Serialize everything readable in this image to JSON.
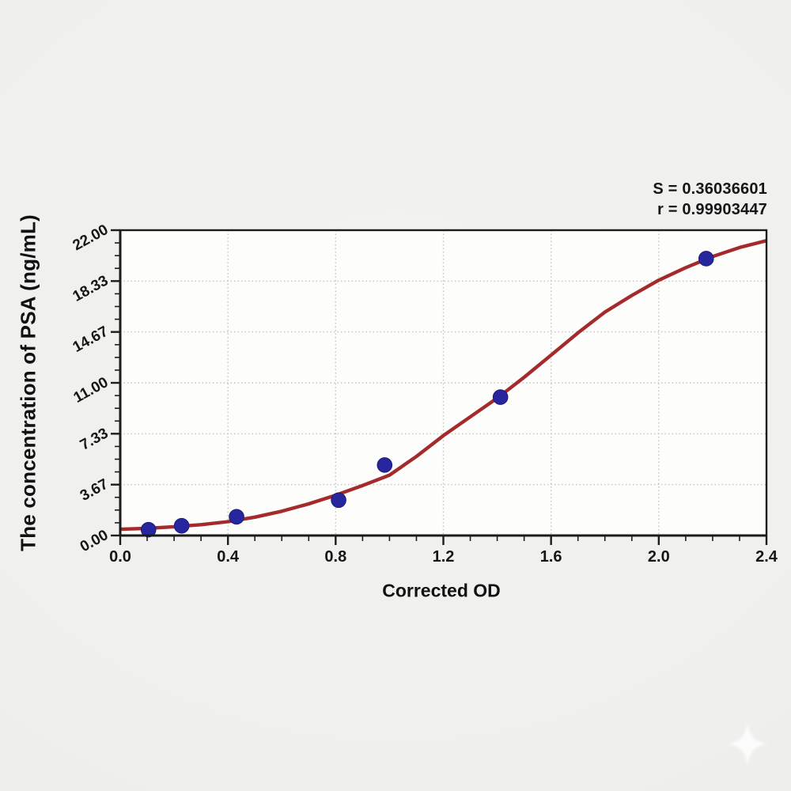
{
  "stats": {
    "s_line": "S = 0.36036601",
    "r_line": "r = 0.99903447",
    "S": "0.36036601",
    "r": "0.99903447"
  },
  "chart_data": {
    "type": "scatter",
    "title": "",
    "xlabel": "Corrected OD",
    "ylabel": "The concentration of PSA (ng/mL)",
    "xlim": [
      0.0,
      2.4
    ],
    "ylim": [
      0.0,
      22.0
    ],
    "grid": "dotted at major ticks",
    "legend": "none",
    "x_major_ticks": [
      0.0,
      0.4,
      0.8,
      1.2,
      1.6,
      2.0,
      2.4
    ],
    "x_tick_labels": [
      "0.0",
      "0.4",
      "0.8",
      "1.2",
      "1.6",
      "2.0",
      "2.4"
    ],
    "x_minor_step": 0.1,
    "y_major_ticks": [
      0.0,
      3.67,
      7.33,
      11.0,
      14.67,
      18.33,
      22.0
    ],
    "y_tick_labels": [
      "0.00",
      "3.67",
      "7.33",
      "11.00",
      "14.67",
      "18.33",
      "22.00"
    ],
    "y_minor_per_major": 3,
    "points": [
      {
        "od": 0.105,
        "conc": 0.42
      },
      {
        "od": 0.228,
        "conc": 0.7
      },
      {
        "od": 0.432,
        "conc": 1.35
      },
      {
        "od": 0.811,
        "conc": 2.55
      },
      {
        "od": 0.982,
        "conc": 5.08
      },
      {
        "od": 1.412,
        "conc": 9.97
      },
      {
        "od": 2.176,
        "conc": 19.95
      }
    ],
    "fit_curve": [
      [
        0.0,
        0.45
      ],
      [
        0.1,
        0.52
      ],
      [
        0.2,
        0.63
      ],
      [
        0.3,
        0.78
      ],
      [
        0.4,
        1.0
      ],
      [
        0.5,
        1.32
      ],
      [
        0.6,
        1.75
      ],
      [
        0.7,
        2.28
      ],
      [
        0.8,
        2.9
      ],
      [
        0.9,
        3.6
      ],
      [
        1.0,
        4.35
      ],
      [
        1.1,
        5.7
      ],
      [
        1.2,
        7.2
      ],
      [
        1.3,
        8.55
      ],
      [
        1.4,
        9.9
      ],
      [
        1.5,
        11.4
      ],
      [
        1.6,
        13.0
      ],
      [
        1.7,
        14.6
      ],
      [
        1.8,
        16.1
      ],
      [
        1.9,
        17.3
      ],
      [
        2.0,
        18.4
      ],
      [
        2.1,
        19.3
      ],
      [
        2.2,
        20.1
      ],
      [
        2.3,
        20.75
      ],
      [
        2.4,
        21.25
      ]
    ],
    "colors": {
      "curve": "#a42a2c",
      "marker": "#28269e",
      "marker_edge": "#1d1b78",
      "grid": "#c3c3c1",
      "axis": "#1c1c1c",
      "plot_bg": "#fdfdfc",
      "page_bg": "#efefed",
      "text": "#161616"
    }
  },
  "decor": {
    "watermark_icon": "four-point-star",
    "watermark_color": "#ffffff"
  }
}
